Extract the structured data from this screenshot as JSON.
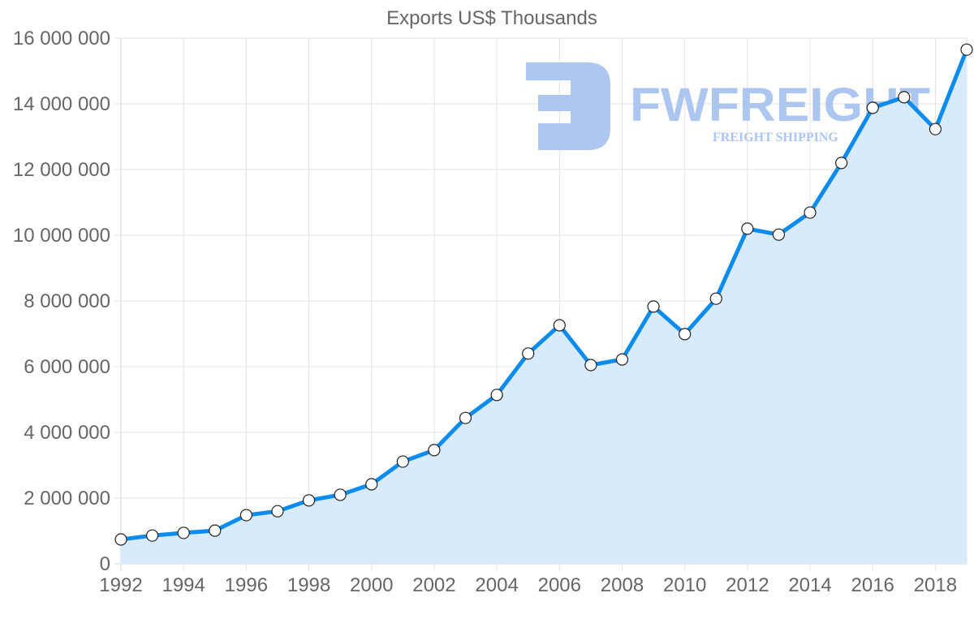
{
  "chart_data": {
    "type": "area",
    "title": "Exports US$ Thousands",
    "xlabel": "",
    "ylabel": "",
    "x": [
      1992,
      1993,
      1994,
      1995,
      1996,
      1997,
      1998,
      1999,
      2000,
      2001,
      2002,
      2003,
      2004,
      2005,
      2006,
      2007,
      2008,
      2009,
      2010,
      2011,
      2012,
      2013,
      2014,
      2015,
      2016,
      2017,
      2018,
      2019
    ],
    "series": [
      {
        "name": "Exports US$ Thousands",
        "values": [
          740000,
          860000,
          940000,
          1010000,
          1480000,
          1600000,
          1930000,
          2100000,
          2420000,
          3110000,
          3460000,
          4440000,
          5140000,
          6400000,
          7260000,
          6050000,
          6220000,
          7830000,
          6990000,
          8070000,
          10200000,
          10020000,
          10690000,
          12200000,
          13880000,
          14200000,
          13230000,
          15650000
        ],
        "line_color": "#0d8ced",
        "fill_color": "#d8ebfd"
      }
    ],
    "ylim": [
      0,
      16000000
    ],
    "xlim": [
      1992,
      2019
    ],
    "y_ticks": [
      0,
      2000000,
      4000000,
      6000000,
      8000000,
      10000000,
      12000000,
      14000000,
      16000000
    ],
    "y_tick_labels": [
      "0",
      "2 000 000",
      "4 000 000",
      "6 000 000",
      "8 000 000",
      "10 000 000",
      "12 000 000",
      "14 000 000",
      "16 000 000"
    ],
    "x_ticks": [
      1992,
      1994,
      1996,
      1998,
      2000,
      2002,
      2004,
      2006,
      2008,
      2010,
      2012,
      2014,
      2016,
      2018
    ],
    "x_tick_labels": [
      "1992",
      "1994",
      "1996",
      "1998",
      "2000",
      "2002",
      "2004",
      "2006",
      "2008",
      "2010",
      "2012",
      "2014",
      "2016",
      "2018"
    ],
    "grid": true,
    "legend": null
  },
  "watermark": {
    "brand": "FWFREIGHT",
    "tagline": "FREIGHT SHIPPING",
    "logo_icon": "fw-logo-icon",
    "color": "#a9c4f0"
  }
}
